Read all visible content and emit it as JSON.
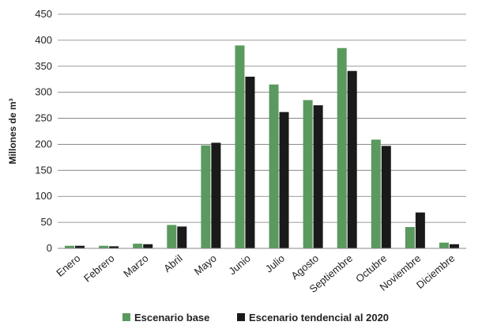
{
  "chart_data": {
    "type": "bar",
    "title": "",
    "xlabel": "",
    "ylabel": "Millones de m³",
    "ylim": [
      0,
      450
    ],
    "yticks": [
      0,
      50,
      100,
      150,
      200,
      250,
      300,
      350,
      400,
      450
    ],
    "grid": true,
    "legend_position": "bottom",
    "categories": [
      "Enero",
      "Febrero",
      "Marzo",
      "Abril",
      "Mayo",
      "Junio",
      "Julio",
      "Agosto",
      "Septiembre",
      "Octubre",
      "Noviembre",
      "Diciembre"
    ],
    "series": [
      {
        "name": "Escenario base",
        "color": "#5a9a5e",
        "values": [
          5,
          5,
          9,
          45,
          198,
          390,
          315,
          285,
          385,
          209,
          41,
          11
        ]
      },
      {
        "name": "Escenario tendencial al 2020",
        "color": "#1a1a1a",
        "values": [
          5,
          4,
          8,
          42,
          203,
          330,
          262,
          275,
          341,
          197,
          69,
          8
        ]
      }
    ]
  }
}
